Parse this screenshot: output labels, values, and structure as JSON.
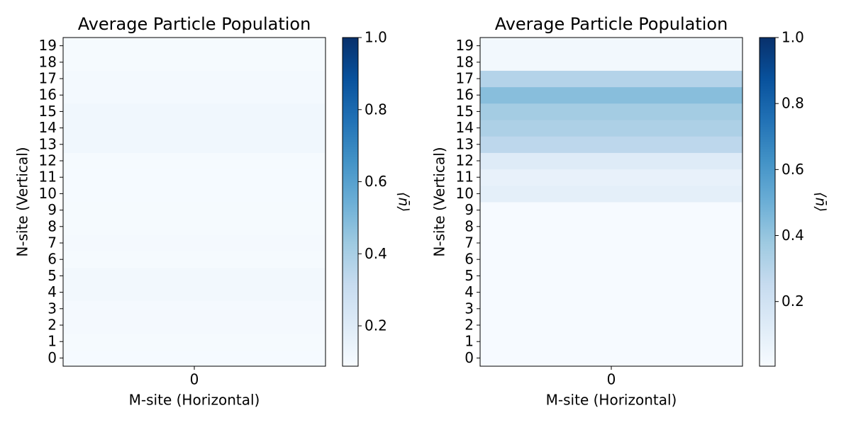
{
  "chart_data": [
    {
      "type": "heatmap",
      "title": "Average Particle Population",
      "xlabel": "M-site (Horizontal)",
      "ylabel": "N-site (Vertical)",
      "colorbar_label": "⟨n̄⟩",
      "colormap": "Blues",
      "xcategories": [
        0
      ],
      "ycategories": [
        0,
        1,
        2,
        3,
        4,
        5,
        6,
        7,
        8,
        9,
        10,
        11,
        12,
        13,
        14,
        15,
        16,
        17,
        18,
        19
      ],
      "values": [
        [
          0.095
        ],
        [
          0.097
        ],
        [
          0.1
        ],
        [
          0.102
        ],
        [
          0.11
        ],
        [
          0.11
        ],
        [
          0.097
        ],
        [
          0.102
        ],
        [
          0.098
        ],
        [
          0.097
        ],
        [
          0.095
        ],
        [
          0.095
        ],
        [
          0.097
        ],
        [
          0.12
        ],
        [
          0.12
        ],
        [
          0.118
        ],
        [
          0.105
        ],
        [
          0.105
        ],
        [
          0.098
        ],
        [
          0.098
        ]
      ],
      "clim": [
        0.088,
        1.0
      ],
      "cticks": [
        0.2,
        0.4,
        0.6,
        0.8,
        {
          "value": 1.0,
          "label": "1.0"
        }
      ]
    },
    {
      "type": "heatmap",
      "title": "Average Particle Population",
      "xlabel": "M-site (Horizontal)",
      "ylabel": "N-site (Vertical)",
      "colorbar_label": "⟨n̄⟩",
      "colormap": "Blues",
      "xcategories": [
        0
      ],
      "ycategories": [
        0,
        1,
        2,
        3,
        4,
        5,
        6,
        7,
        8,
        9,
        10,
        11,
        12,
        13,
        14,
        15,
        16,
        17,
        18,
        19
      ],
      "values": [
        [
          0.01
        ],
        [
          0.01
        ],
        [
          0.01
        ],
        [
          0.01
        ],
        [
          0.01
        ],
        [
          0.01
        ],
        [
          0.01
        ],
        [
          0.01
        ],
        [
          0.01
        ],
        [
          0.01
        ],
        [
          0.1
        ],
        [
          0.08
        ],
        [
          0.13
        ],
        [
          0.28
        ],
        [
          0.33
        ],
        [
          0.36
        ],
        [
          0.43
        ],
        [
          0.31
        ],
        [
          0.03
        ],
        [
          0.03
        ]
      ],
      "clim": [
        0.004,
        1.0
      ],
      "cticks": [
        0.2,
        0.4,
        0.6,
        0.8,
        {
          "value": 1.0,
          "label": "1.0"
        }
      ]
    }
  ]
}
